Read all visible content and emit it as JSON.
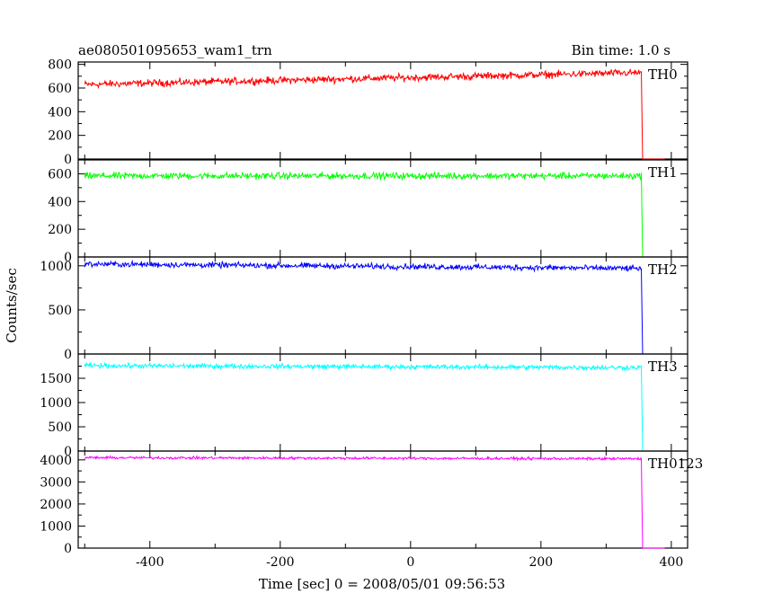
{
  "header": {
    "title": "ae080501095653_wam1_trn",
    "bin_time": "Bin time: 1.0 s"
  },
  "axes": {
    "xlabel": "Time [sec] 0 = 2008/05/01 09:56:53",
    "ylabel": "Counts/sec"
  },
  "chart_data": {
    "type": "line",
    "title": "ae080501095653_wam1_trn",
    "subtitle": "Bin time: 1.0 s",
    "xlabel": "Time [sec] 0 = 2008/05/01 09:56:53",
    "ylabel": "Counts/sec",
    "xlim": [
      -510,
      425
    ],
    "xticks": [
      -400,
      -200,
      0,
      200,
      400
    ],
    "grid": false,
    "panels": [
      {
        "name": "TH0",
        "color": "#ff0000",
        "ylim": [
          0,
          820
        ],
        "yticks": [
          0,
          200,
          400,
          600,
          800
        ],
        "x_start": -500,
        "x_drop": 354,
        "x_end": 390,
        "level_start": 630,
        "level_end": 730,
        "noise": 28,
        "post_drop": 0
      },
      {
        "name": "TH1",
        "color": "#00ff00",
        "ylim": [
          0,
          700
        ],
        "yticks": [
          0,
          200,
          400,
          600
        ],
        "x_start": -500,
        "x_drop": 354,
        "x_end": 390,
        "level_start": 585,
        "level_end": 585,
        "noise": 22,
        "post_drop": 0
      },
      {
        "name": "TH2",
        "color": "#0000ff",
        "ylim": [
          0,
          1100
        ],
        "yticks": [
          0,
          500,
          1000
        ],
        "x_start": -500,
        "x_drop": 354,
        "x_end": 390,
        "level_start": 1020,
        "level_end": 970,
        "noise": 30,
        "post_drop": 0
      },
      {
        "name": "TH3",
        "color": "#00ffff",
        "ylim": [
          0,
          2000
        ],
        "yticks": [
          0,
          500,
          1000,
          1500
        ],
        "x_start": -500,
        "x_drop": 354,
        "x_end": 390,
        "level_start": 1760,
        "level_end": 1720,
        "noise": 45,
        "post_drop": 0
      },
      {
        "name": "TH0123",
        "color": "#ff00ff",
        "ylim": [
          0,
          4400
        ],
        "yticks": [
          0,
          1000,
          2000,
          3000,
          4000
        ],
        "x_start": -500,
        "x_drop": 354,
        "x_end": 390,
        "level_start": 4100,
        "level_end": 4050,
        "noise": 55,
        "post_drop": 0
      }
    ]
  }
}
